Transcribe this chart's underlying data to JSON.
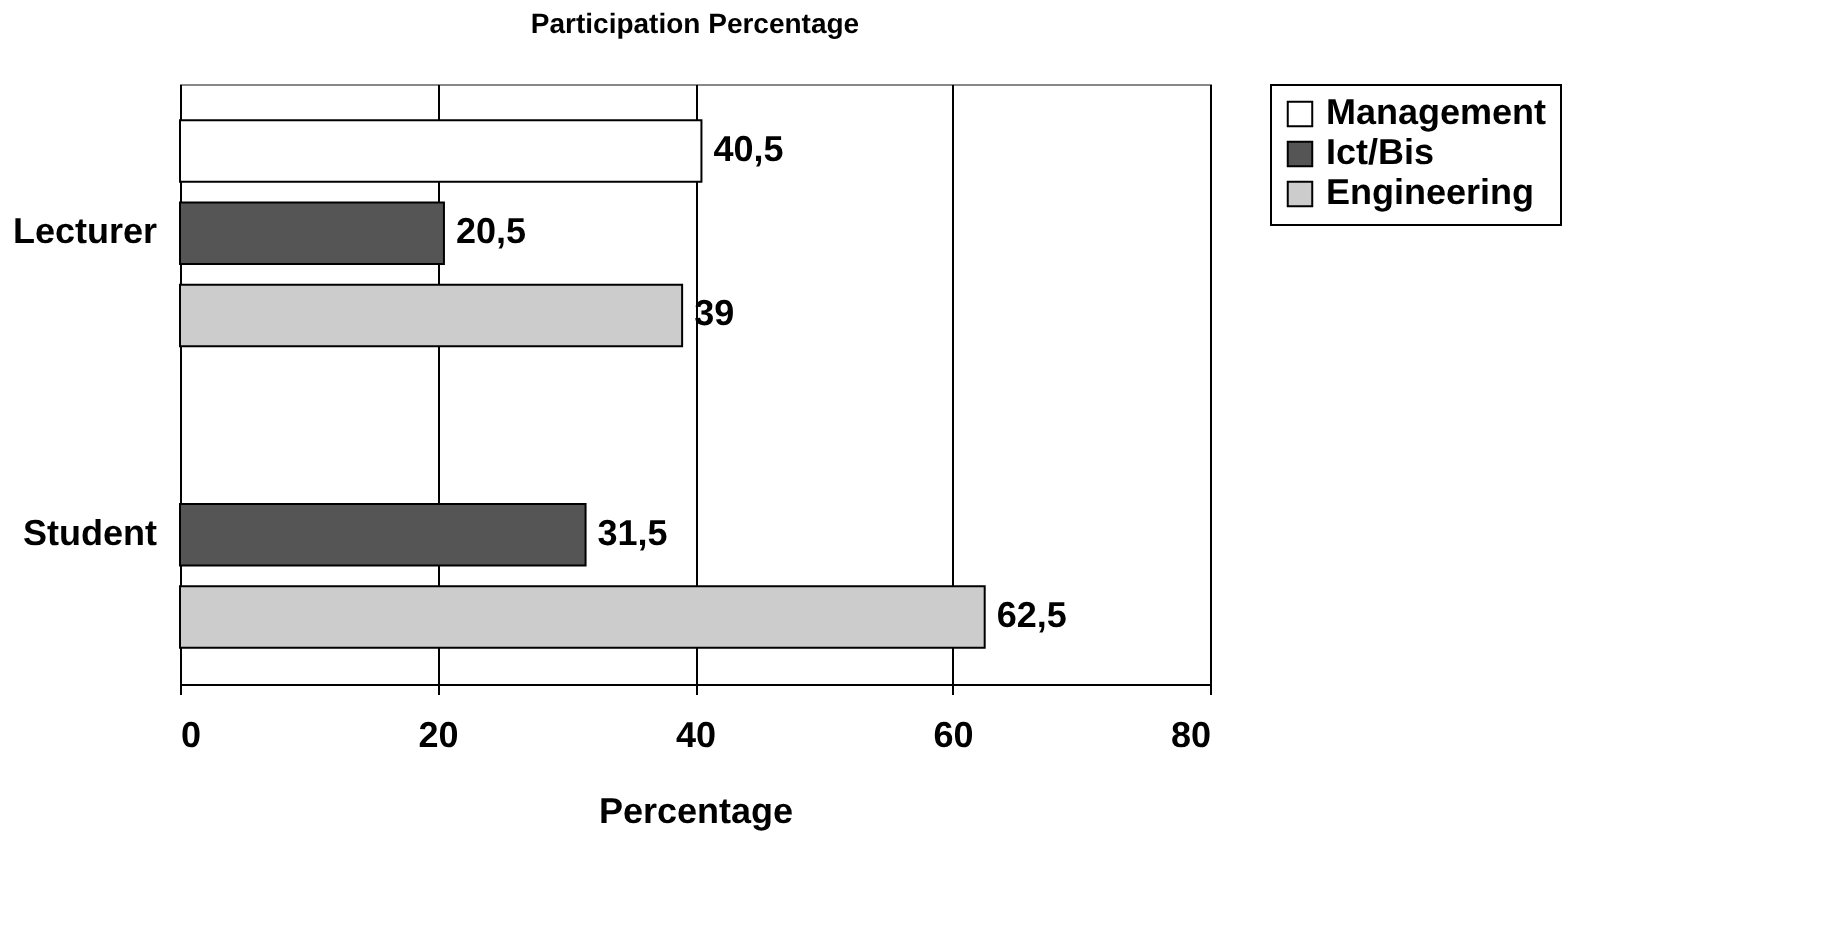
{
  "chart_data": {
    "type": "bar",
    "orientation": "horizontal",
    "title": "Participation Percentage",
    "xlabel": "Percentage",
    "categories": [
      "Lecturer",
      "Student"
    ],
    "series": [
      {
        "name": "Management",
        "color": "#ffffff",
        "values": [
          40.5,
          null
        ],
        "value_labels": [
          "40,5",
          null
        ]
      },
      {
        "name": "Ict/Bis",
        "color": "#555555",
        "values": [
          20.5,
          31.5
        ],
        "value_labels": [
          "20,5",
          "31,5"
        ]
      },
      {
        "name": "Engineering",
        "color": "#cccccc",
        "values": [
          39,
          62.5
        ],
        "value_labels": [
          "39",
          "62,5"
        ]
      }
    ],
    "xlim": [
      0,
      80
    ],
    "xticks": [
      0,
      20,
      40,
      60,
      80
    ],
    "grid": "x",
    "legend": "right"
  }
}
